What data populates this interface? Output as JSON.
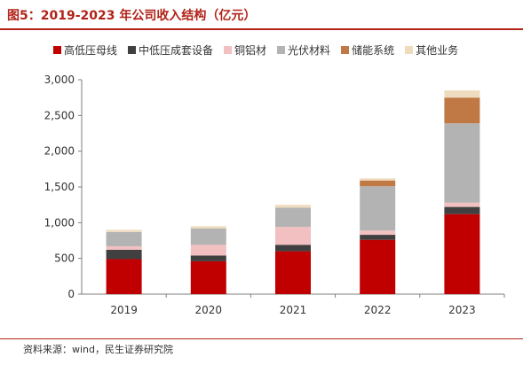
{
  "title": "图5：2019-2023 年公司收入结构（亿元）",
  "source": "资料来源：wind，民生证券研究院",
  "colors": {
    "accent": "#b02318"
  },
  "chart_data": {
    "type": "bar",
    "stacked": true,
    "categories": [
      "2019",
      "2020",
      "2021",
      "2022",
      "2023"
    ],
    "ylim": [
      0,
      3000
    ],
    "yticks": [
      "0",
      "500",
      "1,000",
      "1,500",
      "2,000",
      "2,500",
      "3,000"
    ],
    "ytick_values": [
      0,
      500,
      1000,
      1500,
      2000,
      2500,
      3000
    ],
    "grid": false,
    "legend_position": "top",
    "series": [
      {
        "name": "高低压母线",
        "color": "#c00000",
        "values": [
          490,
          460,
          600,
          760,
          1120
        ]
      },
      {
        "name": "中低压成套设备",
        "color": "#404040",
        "values": [
          130,
          80,
          90,
          70,
          100
        ]
      },
      {
        "name": "铜铝材",
        "color": "#f2c0c0",
        "values": [
          50,
          150,
          250,
          60,
          60
        ]
      },
      {
        "name": "光伏材料",
        "color": "#b3b3b3",
        "values": [
          200,
          230,
          270,
          620,
          1110
        ]
      },
      {
        "name": "储能系统",
        "color": "#c07844",
        "values": [
          0,
          0,
          0,
          80,
          360
        ]
      },
      {
        "name": "其他业务",
        "color": "#efdcbf",
        "values": [
          30,
          30,
          40,
          30,
          100
        ]
      }
    ]
  }
}
